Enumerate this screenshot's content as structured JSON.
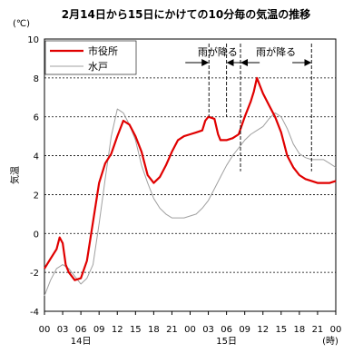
{
  "chart_data": {
    "type": "line",
    "title": "2月14日から15日にかけての10分毎の気温の推移",
    "unit_label": "(℃)",
    "ylabel": "気温",
    "ylim": [
      -4,
      10
    ],
    "yticks": [
      "-4",
      "-2",
      "0",
      "2",
      "4",
      "6",
      "8",
      "10"
    ],
    "xlim": [
      0,
      48
    ],
    "xtick_hours": [
      0,
      3,
      6,
      9,
      12,
      15,
      18,
      21,
      24,
      27,
      30,
      33,
      36,
      39,
      42,
      45,
      48
    ],
    "xticks": [
      "00",
      "03",
      "06",
      "09",
      "12",
      "15",
      "18",
      "21",
      "00",
      "03",
      "06",
      "09",
      "12",
      "15",
      "18",
      "21",
      "00"
    ],
    "day_labels": [
      {
        "hour": 6,
        "label": "14日"
      },
      {
        "hour": 30,
        "label": "15日"
      }
    ],
    "x_unit_label": "(時)",
    "grid": {
      "horizontal": true,
      "vertical": false,
      "style": "dotted"
    },
    "legend": {
      "position": "top-left",
      "entries": [
        "市役所",
        "水戸"
      ]
    },
    "annotations": [
      {
        "label": "雨が降る",
        "from_hour": 27.1,
        "to_hour": 30.0
      },
      {
        "label": "雨が降る",
        "from_hour": 32.3,
        "to_hour": 44.0
      }
    ],
    "series": [
      {
        "name": "市役所",
        "color": "#e00000",
        "points": [
          [
            0,
            -1.8
          ],
          [
            1,
            -1.3
          ],
          [
            2,
            -0.8
          ],
          [
            2.5,
            -0.2
          ],
          [
            3,
            -0.5
          ],
          [
            3.5,
            -1.6
          ],
          [
            4,
            -2.0
          ],
          [
            5,
            -2.4
          ],
          [
            6,
            -2.3
          ],
          [
            7,
            -1.4
          ],
          [
            8,
            0.6
          ],
          [
            9,
            2.6
          ],
          [
            10,
            3.6
          ],
          [
            11,
            4.1
          ],
          [
            12,
            5.0
          ],
          [
            13,
            5.8
          ],
          [
            14,
            5.6
          ],
          [
            15,
            5.0
          ],
          [
            16,
            4.2
          ],
          [
            17,
            3.0
          ],
          [
            18,
            2.6
          ],
          [
            19,
            2.9
          ],
          [
            20,
            3.5
          ],
          [
            21,
            4.2
          ],
          [
            22,
            4.8
          ],
          [
            23,
            5.0
          ],
          [
            24,
            5.1
          ],
          [
            25,
            5.2
          ],
          [
            26,
            5.3
          ],
          [
            26.5,
            5.8
          ],
          [
            27,
            6.0
          ],
          [
            28,
            5.9
          ],
          [
            28.6,
            5.1
          ],
          [
            29,
            4.8
          ],
          [
            30,
            4.8
          ],
          [
            31,
            4.9
          ],
          [
            32,
            5.1
          ],
          [
            33,
            6.0
          ],
          [
            34,
            6.8
          ],
          [
            34.5,
            7.3
          ],
          [
            35,
            8.0
          ],
          [
            35.5,
            7.6
          ],
          [
            36,
            7.2
          ],
          [
            37,
            6.6
          ],
          [
            38,
            6.0
          ],
          [
            39,
            5.2
          ],
          [
            40,
            4.0
          ],
          [
            41,
            3.4
          ],
          [
            42,
            3.0
          ],
          [
            43,
            2.8
          ],
          [
            44,
            2.7
          ],
          [
            45,
            2.6
          ],
          [
            46,
            2.6
          ],
          [
            47,
            2.6
          ],
          [
            48,
            2.7
          ]
        ]
      },
      {
        "name": "水戸",
        "color": "#a0a0a0",
        "points": [
          [
            0,
            -3.2
          ],
          [
            1,
            -2.4
          ],
          [
            2,
            -1.8
          ],
          [
            3,
            -1.6
          ],
          [
            4,
            -1.8
          ],
          [
            5,
            -2.2
          ],
          [
            6,
            -2.6
          ],
          [
            7,
            -2.3
          ],
          [
            8,
            -1.6
          ],
          [
            9,
            0.5
          ],
          [
            10,
            2.8
          ],
          [
            11,
            5.0
          ],
          [
            12,
            6.4
          ],
          [
            13,
            6.2
          ],
          [
            14,
            5.6
          ],
          [
            15,
            4.8
          ],
          [
            16,
            3.5
          ],
          [
            17,
            2.6
          ],
          [
            18,
            1.8
          ],
          [
            19,
            1.3
          ],
          [
            20,
            1.0
          ],
          [
            21,
            0.8
          ],
          [
            22,
            0.8
          ],
          [
            23,
            0.8
          ],
          [
            24,
            0.9
          ],
          [
            25,
            1.0
          ],
          [
            26,
            1.3
          ],
          [
            27,
            1.7
          ],
          [
            28,
            2.3
          ],
          [
            29,
            2.9
          ],
          [
            30,
            3.5
          ],
          [
            31,
            4.0
          ],
          [
            32,
            4.4
          ],
          [
            33,
            4.8
          ],
          [
            34,
            5.1
          ],
          [
            35,
            5.3
          ],
          [
            36,
            5.5
          ],
          [
            37,
            5.9
          ],
          [
            38,
            6.2
          ],
          [
            39,
            6.0
          ],
          [
            40,
            5.4
          ],
          [
            41,
            4.6
          ],
          [
            42,
            4.1
          ],
          [
            43,
            3.9
          ],
          [
            44,
            3.8
          ],
          [
            45,
            3.8
          ],
          [
            46,
            3.8
          ],
          [
            47,
            3.6
          ],
          [
            48,
            3.4
          ]
        ]
      }
    ]
  }
}
